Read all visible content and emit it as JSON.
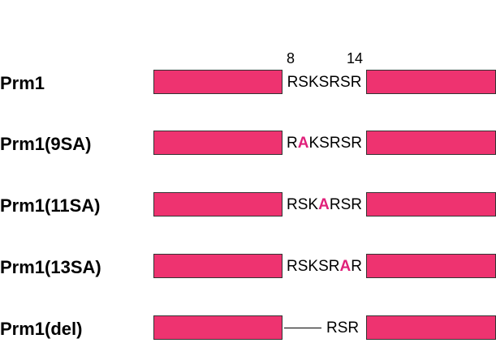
{
  "colors": {
    "box_fill": "#EE3370",
    "mutation": "#E0207A",
    "text": "#000000"
  },
  "positions": {
    "start": "8",
    "end": "14"
  },
  "rows": [
    {
      "label": "Prm1",
      "type": "segments",
      "segments": [
        {
          "text": "RSKSRSR",
          "mutated": false
        }
      ]
    },
    {
      "label": "Prm1(9SA)",
      "type": "segments",
      "segments": [
        {
          "text": "R",
          "mutated": false
        },
        {
          "text": "A",
          "mutated": true
        },
        {
          "text": "KSRSR",
          "mutated": false
        }
      ]
    },
    {
      "label": "Prm1(11SA)",
      "type": "segments",
      "segments": [
        {
          "text": "RSK",
          "mutated": false
        },
        {
          "text": "A",
          "mutated": true
        },
        {
          "text": "RSR",
          "mutated": false
        }
      ]
    },
    {
      "label": "Prm1(13SA)",
      "type": "segments",
      "segments": [
        {
          "text": "RSKSR",
          "mutated": false
        },
        {
          "text": "A",
          "mutated": true
        },
        {
          "text": "R",
          "mutated": false
        }
      ]
    },
    {
      "label": "Prm1(del)",
      "type": "deletion",
      "remaining": "RSR"
    }
  ]
}
